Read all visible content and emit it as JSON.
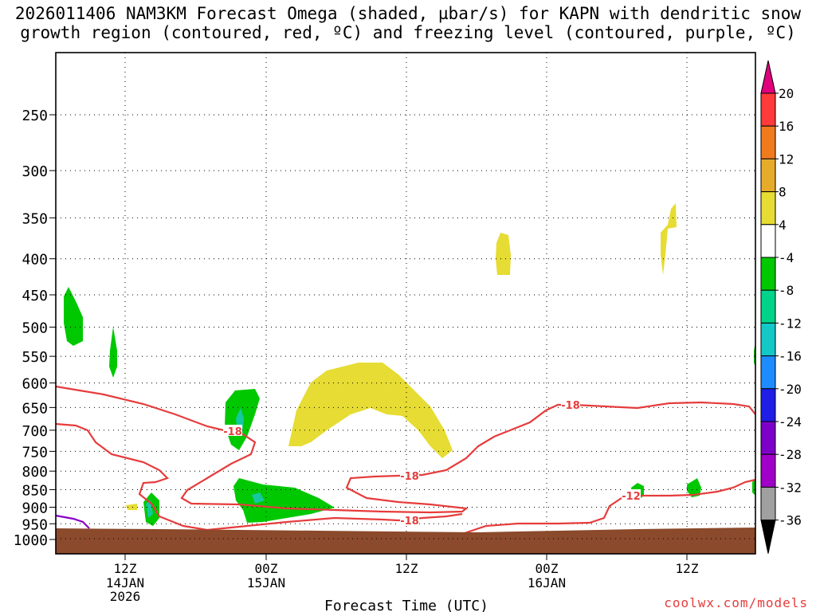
{
  "title_line1": "2026011406 NAM3KM Forecast Omega (shaded, µbar/s) for KAPN with dendritic snow",
  "title_line2": "growth region (contoured, red, ºC) and freezing level (contoured, purple, ºC)",
  "credit": "coolwx.com/models",
  "chart_data": {
    "type": "heatmap",
    "title": "2026011406 NAM3KM Forecast Omega (shaded, µbar/s) for KAPN with dendritic snow growth region (contoured, red, ºC) and freezing level (contoured, purple, ºC)",
    "xlabel": "Forecast Time (UTC)",
    "ylabel": "",
    "x_ticks": [
      {
        "label": "12Z",
        "sub": [
          "14JAN",
          "2026"
        ]
      },
      {
        "label": "00Z",
        "sub": [
          "15JAN"
        ]
      },
      {
        "label": "12Z",
        "sub": []
      },
      {
        "label": "00Z",
        "sub": [
          "16JAN"
        ]
      },
      {
        "label": "12Z",
        "sub": []
      }
    ],
    "y_scale": "log-pressure",
    "y_axis": "pressure (hPa), reversed",
    "y_ticks": [
      250,
      300,
      350,
      400,
      450,
      500,
      550,
      600,
      650,
      700,
      750,
      800,
      850,
      900,
      950,
      1000
    ],
    "grid": true,
    "colorbar": {
      "labels": [
        "20",
        "16",
        "12",
        "8",
        "4",
        "-4",
        "-8",
        "-12",
        "-16",
        "-20",
        "-24",
        "-28",
        "-32",
        "-36"
      ],
      "colors": [
        "#e0007c",
        "#ff3a3a",
        "#f07b1f",
        "#e6ab2a",
        "#e6dc33",
        "#ffffff",
        "#00c800",
        "#00d48a",
        "#14c8c8",
        "#1e8cff",
        "#1e1ee6",
        "#7d00c8",
        "#a000c8",
        "#a0a0a0",
        "#000000"
      ]
    },
    "contours_dgz": {
      "color": "#e63c3c",
      "labels": [
        "-18",
        "-18",
        "-18",
        "-18",
        "-12"
      ]
    },
    "freezing_level": {
      "color": "#8a00c8"
    },
    "terrain_color": "#8b4a2b",
    "omega_colors": {
      "green": "#00c800",
      "cyan": "#14c8a0",
      "yellow": "#e6dc33"
    }
  }
}
